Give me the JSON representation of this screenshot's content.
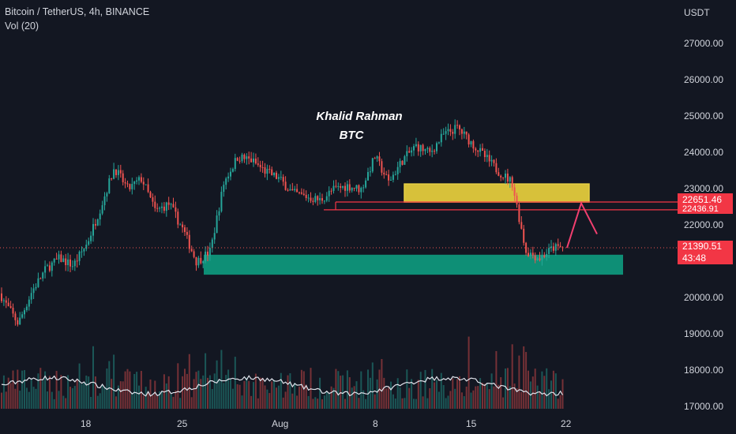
{
  "header": {
    "symbol_line": "Bitcoin / TetherUS, 4h, BINANCE",
    "volume_line": "Vol (20)"
  },
  "axis": {
    "currency": "USDT"
  },
  "annotation": {
    "author": "Khalid Rahman",
    "ticker": "BTC"
  },
  "price_tags": {
    "current_price": "21390.51",
    "countdown": "43:48",
    "level_upper": "22651.46",
    "level_lower": "22436.91"
  },
  "colors": {
    "background": "#131722",
    "up": "#26a69a",
    "down": "#ef5350",
    "demand_zone": "#0e8f76",
    "supply_zone": "#d7c13a",
    "level_line": "#f23645",
    "projection": "#f23f6f",
    "volume_ma": "#e0e3eb"
  },
  "chart_data": {
    "type": "candlestick",
    "title": "Bitcoin / TetherUS, 4h, BINANCE",
    "ylabel": "USDT",
    "ylim": [
      16900,
      27900
    ],
    "yticks": [
      17000,
      18000,
      19000,
      20000,
      21000,
      22000,
      23000,
      24000,
      25000,
      26000,
      27000
    ],
    "xticks": [
      "18",
      "25",
      "Aug",
      "8",
      "15",
      "22"
    ],
    "grid": false,
    "price_path": [
      {
        "x": "Jul 11",
        "y": 20600
      },
      {
        "x": "Jul 12",
        "y": 19900
      },
      {
        "x": "Jul 13",
        "y": 19300
      },
      {
        "x": "Jul 14",
        "y": 20200
      },
      {
        "x": "Jul 15",
        "y": 20800
      },
      {
        "x": "Jul 16",
        "y": 21100
      },
      {
        "x": "Jul 17",
        "y": 20900
      },
      {
        "x": "Jul 18",
        "y": 21500
      },
      {
        "x": "Jul 19",
        "y": 22500
      },
      {
        "x": "Jul 20",
        "y": 23600
      },
      {
        "x": "Jul 21",
        "y": 23000
      },
      {
        "x": "Jul 22",
        "y": 23300
      },
      {
        "x": "Jul 23",
        "y": 22400
      },
      {
        "x": "Jul 24",
        "y": 22600
      },
      {
        "x": "Jul 25",
        "y": 21900
      },
      {
        "x": "Jul 26",
        "y": 21000
      },
      {
        "x": "Jul 27",
        "y": 21300
      },
      {
        "x": "Jul 28",
        "y": 23200
      },
      {
        "x": "Jul 29",
        "y": 23900
      },
      {
        "x": "Jul 30",
        "y": 23800
      },
      {
        "x": "Jul 31",
        "y": 23500
      },
      {
        "x": "Aug 1",
        "y": 23300
      },
      {
        "x": "Aug 2",
        "y": 22900
      },
      {
        "x": "Aug 3",
        "y": 22800
      },
      {
        "x": "Aug 4",
        "y": 22700
      },
      {
        "x": "Aug 5",
        "y": 23000
      },
      {
        "x": "Aug 6",
        "y": 23100
      },
      {
        "x": "Aug 7",
        "y": 23000
      },
      {
        "x": "Aug 8",
        "y": 23900
      },
      {
        "x": "Aug 9",
        "y": 23200
      },
      {
        "x": "Aug 10",
        "y": 23800
      },
      {
        "x": "Aug 11",
        "y": 24200
      },
      {
        "x": "Aug 12",
        "y": 24000
      },
      {
        "x": "Aug 13",
        "y": 24500
      },
      {
        "x": "Aug 14",
        "y": 24700
      },
      {
        "x": "Aug 15",
        "y": 24300
      },
      {
        "x": "Aug 16",
        "y": 23900
      },
      {
        "x": "Aug 17",
        "y": 23500
      },
      {
        "x": "Aug 18",
        "y": 23200
      },
      {
        "x": "Aug 19",
        "y": 21300
      },
      {
        "x": "Aug 20",
        "y": 21100
      },
      {
        "x": "Aug 21",
        "y": 21390
      }
    ],
    "zones": [
      {
        "type": "supply",
        "from": "Aug 10",
        "to": "Aug 22",
        "low": 22650,
        "high": 23150
      },
      {
        "type": "demand",
        "from": "Jul 26",
        "to": "Aug 24",
        "low": 20650,
        "high": 21200
      }
    ],
    "levels": [
      22651.46,
      22436.91
    ],
    "current_price": 21390.51,
    "projection": [
      {
        "x": "Aug 21",
        "y": 21390
      },
      {
        "x": "Aug 22",
        "y": 22620
      },
      {
        "x": "Aug 23",
        "y": 21770
      }
    ],
    "volume_series": "Vol (20)"
  }
}
